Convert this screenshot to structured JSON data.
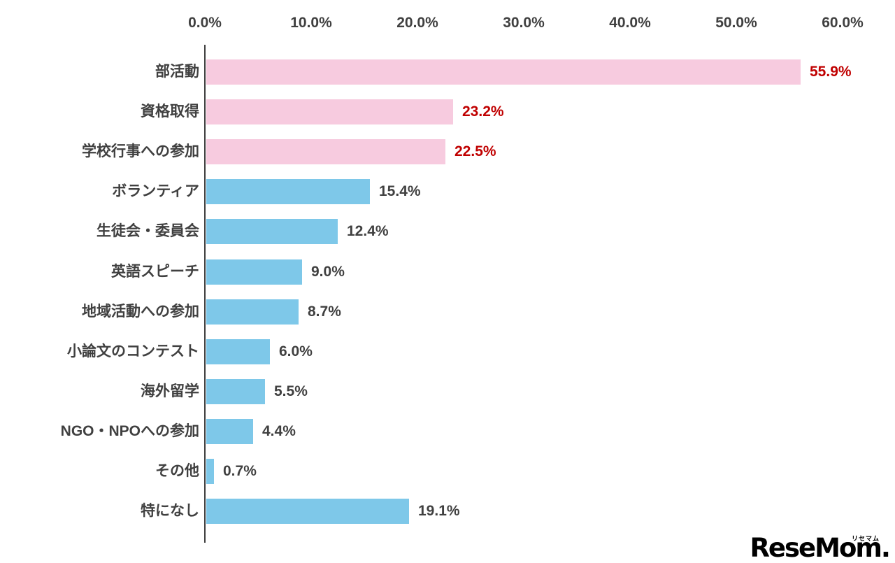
{
  "chart_data": {
    "type": "bar",
    "orientation": "horizontal",
    "title": "",
    "xlabel": "",
    "ylabel": "",
    "categories": [
      "部活動",
      "資格取得",
      "学校行事への参加",
      "ボランティア",
      "生徒会・委員会",
      "英語スピーチ",
      "地域活動への参加",
      "小論文のコンテスト",
      "海外留学",
      "NGO・NPOへの参加",
      "その他",
      "特になし"
    ],
    "values": [
      55.9,
      23.2,
      22.5,
      15.4,
      12.4,
      9.0,
      8.7,
      6.0,
      5.5,
      4.4,
      0.7,
      19.1
    ],
    "value_labels": [
      "55.9%",
      "23.2%",
      "22.5%",
      "15.4%",
      "12.4%",
      "9.0%",
      "8.7%",
      "6.0%",
      "5.5%",
      "4.4%",
      "0.7%",
      "19.1%"
    ],
    "x_axis": {
      "position": "top",
      "min": 0,
      "max": 60,
      "tick_step": 10,
      "ticks": [
        "0.0%",
        "10.0%",
        "20.0%",
        "30.0%",
        "40.0%",
        "50.0%",
        "60.0%"
      ]
    },
    "highlight_count": 3,
    "grid": false,
    "legend": false,
    "colors": {
      "highlight_bar": "#f7cbdf",
      "normal_bar": "#7ec8e9",
      "highlight_value_text": "#c00000",
      "normal_value_text": "#404040",
      "axis_text": "#404040",
      "category_text": "#404040",
      "axis_line": "#3f3f3f",
      "background": "#ffffff"
    }
  },
  "branding": {
    "logo_text": "ReseMom.",
    "logo_ruby": "リセマム"
  }
}
